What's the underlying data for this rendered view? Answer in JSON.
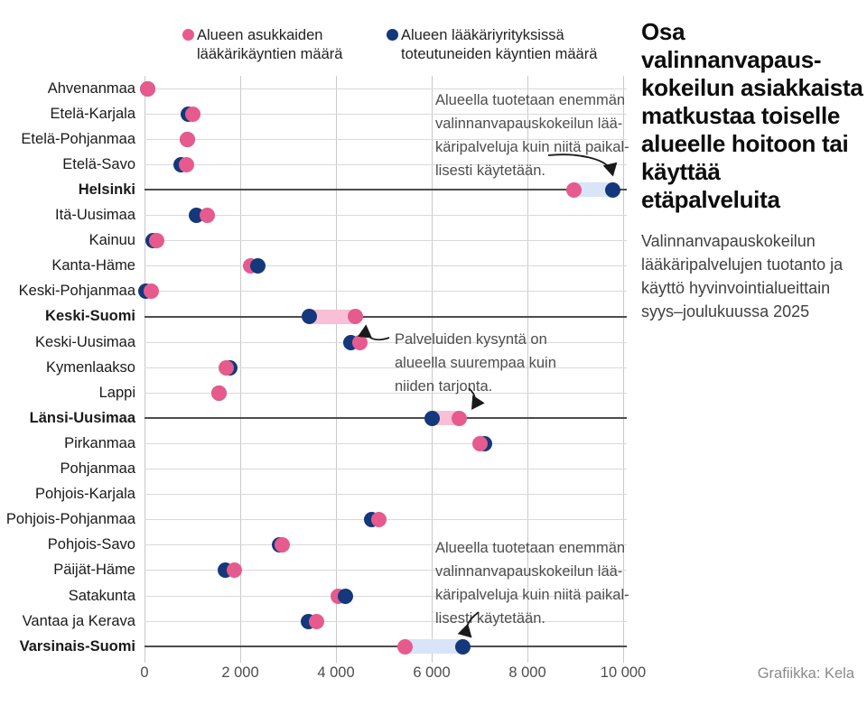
{
  "legend": {
    "items": [
      {
        "key": "residents",
        "label": "Alueen asukkaiden\nlääkärikäyntien määrä",
        "color": "#e75a8d"
      },
      {
        "key": "realized",
        "label": "Alueen lääkäriyrityksissä\ntoteutuneiden käyntien määrä",
        "color": "#14387c"
      }
    ]
  },
  "title": "Osa valinnanvapaus-\nkokeilun asiakkaista\nmatkustaa toiselle\nalueelle hoitoon tai\nkäyttää etäpalveluita",
  "subtitle": "Valinnanvapauskokeilun\nlääkäripalvelujen tuotanto ja\nkäyttö hyvinvointialueittain\nsyys–joulukuussa 2025",
  "credit": "Grafiikka: Kela",
  "annotations": {
    "produced_more_top": "Alueella tuotetaan enemmän\nvalinnanvapauskokeilun lää-\nkäripalveluja kuin niitä paikal-\nlisesti käytetään.",
    "demand_higher": "Palveluiden kysyntä on\nalueella suurempaa kuin\nniiden tarjonta.",
    "produced_more_bottom": "Alueella tuotetaan enemmän\nvalinnanvapauskokeilun lää-\nkäripalveluja kuin niitä paikal-\nlisesti käytetään."
  },
  "chart_data": {
    "type": "scatter",
    "subtype": "dumbbell-dot-plot",
    "x_axis": {
      "range": [
        0,
        10000
      ],
      "ticks": [
        0,
        2000,
        4000,
        6000,
        8000,
        10000
      ],
      "tick_labels": [
        "0",
        "2 000",
        "4 000",
        "6 000",
        "8 000",
        "10 000"
      ],
      "grid": true
    },
    "series": [
      {
        "key": "residents",
        "name": "Alueen asukkaiden lääkärikäyntien määrä",
        "color": "#e75a8d"
      },
      {
        "key": "realized",
        "name": "Alueen lääkäriyrityksissä toteutuneiden käyntien määrä",
        "color": "#14387c"
      }
    ],
    "band_colors": {
      "production_surplus": "#d8e4f8",
      "demand_surplus": "#f8bfd7"
    },
    "regions": [
      {
        "name": "Ahvenanmaa",
        "bold": false,
        "residents": 60,
        "realized": 60,
        "band": null
      },
      {
        "name": "Etelä-Karjala",
        "bold": false,
        "residents": 1010,
        "realized": 920,
        "band": null
      },
      {
        "name": "Etelä-Pohjanmaa",
        "bold": false,
        "residents": 890,
        "realized": 890,
        "band": null
      },
      {
        "name": "Etelä-Savo",
        "bold": false,
        "residents": 870,
        "realized": 770,
        "band": null
      },
      {
        "name": "Helsinki",
        "bold": true,
        "residents": 8980,
        "realized": 9790,
        "band": "production_surplus"
      },
      {
        "name": "Itä-Uusimaa",
        "bold": false,
        "residents": 1310,
        "realized": 1090,
        "band": null
      },
      {
        "name": "Kainuu",
        "bold": false,
        "residents": 250,
        "realized": 170,
        "band": null
      },
      {
        "name": "Kanta-Häme",
        "bold": false,
        "residents": 2220,
        "realized": 2360,
        "band": null,
        "top": "realized"
      },
      {
        "name": "Keski-Pohjanmaa",
        "bold": false,
        "residents": 140,
        "realized": 20,
        "band": null
      },
      {
        "name": "Keski-Suomi",
        "bold": true,
        "residents": 4400,
        "realized": 3450,
        "band": "demand_surplus"
      },
      {
        "name": "Keski-Uusimaa",
        "bold": false,
        "residents": 4500,
        "realized": 4320,
        "band": null
      },
      {
        "name": "Kymenlaakso",
        "bold": false,
        "residents": 1700,
        "realized": 1790,
        "band": null
      },
      {
        "name": "Lappi",
        "bold": false,
        "residents": 1550,
        "realized": 1550,
        "band": null
      },
      {
        "name": "Länsi-Uusimaa",
        "bold": true,
        "residents": 6570,
        "realized": 6000,
        "band": "demand_surplus"
      },
      {
        "name": "Pirkanmaa",
        "bold": false,
        "residents": 7000,
        "realized": 7110,
        "band": null
      },
      {
        "name": "Pohjanmaa",
        "bold": false,
        "residents": null,
        "realized": null,
        "band": null
      },
      {
        "name": "Pohjois-Karjala",
        "bold": false,
        "residents": null,
        "realized": null,
        "band": null
      },
      {
        "name": "Pohjois-Pohjanmaa",
        "bold": false,
        "residents": 4890,
        "realized": 4740,
        "band": null
      },
      {
        "name": "Pohjois-Savo",
        "bold": false,
        "residents": 2880,
        "realized": 2820,
        "band": null
      },
      {
        "name": "Päijät-Häme",
        "bold": false,
        "residents": 1870,
        "realized": 1680,
        "band": null
      },
      {
        "name": "Satakunta",
        "bold": false,
        "residents": 4040,
        "realized": 4190,
        "band": null,
        "top": "realized"
      },
      {
        "name": "Vantaa ja Kerava",
        "bold": false,
        "residents": 3590,
        "realized": 3420,
        "band": null
      },
      {
        "name": "Varsinais-Suomi",
        "bold": true,
        "residents": 5450,
        "realized": 6650,
        "band": "production_surplus"
      }
    ]
  }
}
